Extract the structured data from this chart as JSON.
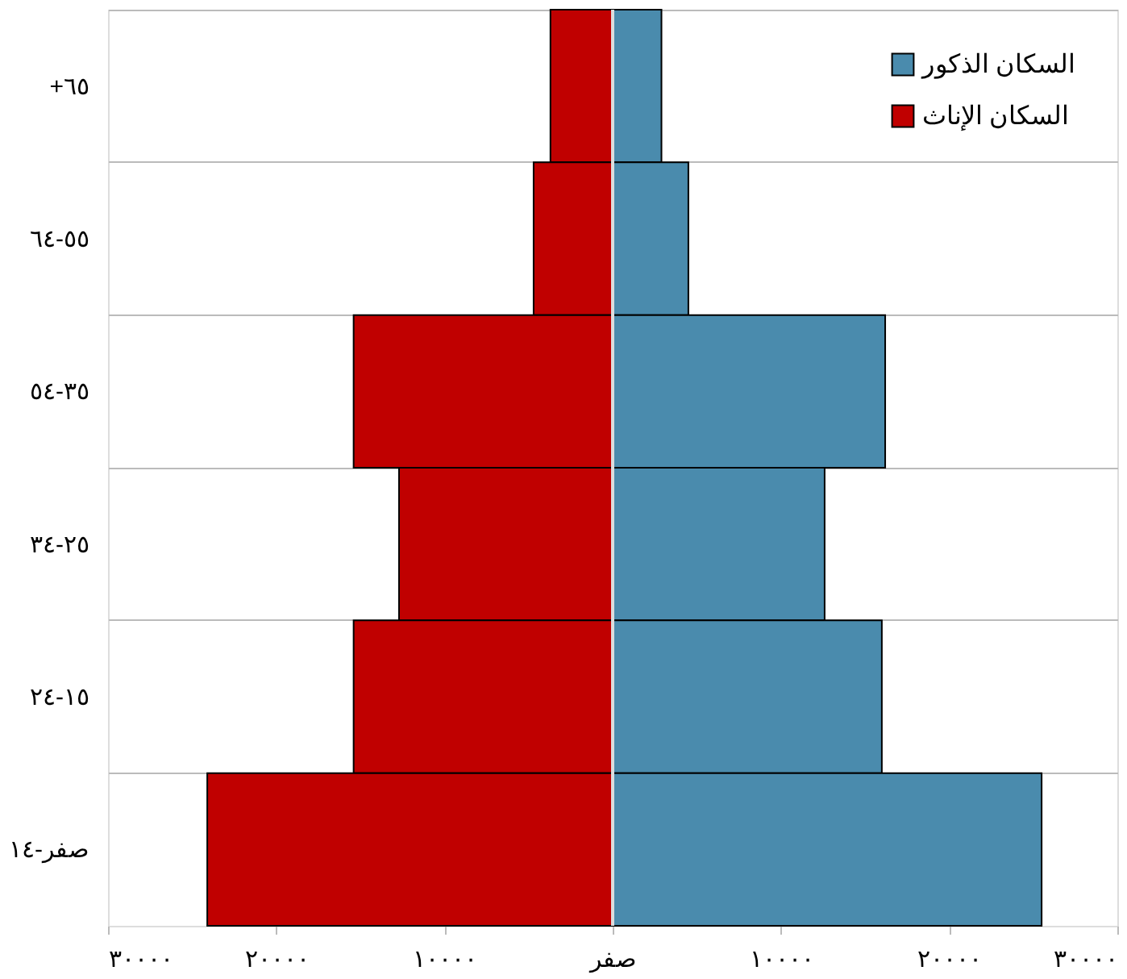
{
  "chart_data": {
    "type": "bar",
    "orientation": "horizontal",
    "stacked": true,
    "categories": [
      "+٦٥",
      "٥٥-٦٤",
      "٣٥-٥٤",
      "٢٥-٣٤",
      "١٥-٢٤",
      "صفر-١٤"
    ],
    "series": [
      {
        "name": "السكان الذكور",
        "color": "#4a8bad",
        "values": [
          2900,
          4500,
          16200,
          12600,
          16000,
          25500
        ]
      },
      {
        "name": "السكان الإناث",
        "color": "#c00000",
        "values": [
          -3700,
          -4700,
          -15400,
          -12700,
          -15400,
          -24100
        ]
      }
    ],
    "xlim": [
      -30000,
      30000
    ],
    "xticks": [
      {
        "value": -30000,
        "label": "٣٠٠٠٠"
      },
      {
        "value": -20000,
        "label": "٢٠٠٠٠"
      },
      {
        "value": -10000,
        "label": "١٠٠٠٠"
      },
      {
        "value": 0,
        "label": "صفر"
      },
      {
        "value": 10000,
        "label": "١٠٠٠٠"
      },
      {
        "value": 20000,
        "label": "٢٠٠٠٠"
      },
      {
        "value": 30000,
        "label": "٣٠٠٠٠"
      }
    ],
    "grid": "y",
    "legend": "top right"
  }
}
